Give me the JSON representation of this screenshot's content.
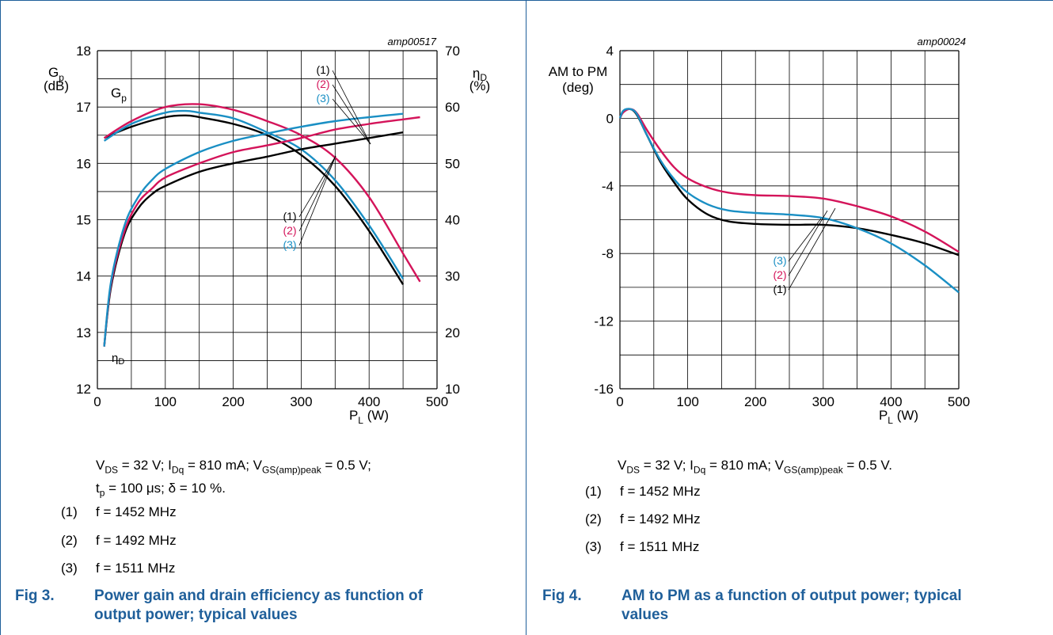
{
  "fig3": {
    "id_label": "amp00517",
    "y_left_label_main": "G",
    "y_left_label_sub": "p",
    "y_left_unit": "(dB)",
    "y_right_label_main": "η",
    "y_right_label_sub": "D",
    "y_right_unit": "(%)",
    "x_label_main": "P",
    "x_label_sub": "L",
    "x_label_unit": " (W)",
    "gp_tag_main": "G",
    "gp_tag_sub": "p",
    "eta_tag_main": "η",
    "eta_tag_sub": "D",
    "conditions_line1": "V_DS = 32 V; I_Dq = 810 mA; V_GS(amp)peak = 0.5 V;",
    "conditions_line2": "t_p = 100 μs; δ = 10 %.",
    "legend": [
      {
        "num": "(1)",
        "text": "f = 1452 MHz"
      },
      {
        "num": "(2)",
        "text": "f = 1492 MHz"
      },
      {
        "num": "(3)",
        "text": "f = 1511 MHz"
      }
    ],
    "caption_num": "Fig 3.",
    "caption_text": "Power gain and drain efficiency as function of output power; typical values"
  },
  "fig4": {
    "id_label": "amp00024",
    "y_label_line1": "AM to PM",
    "y_label_line2": "(deg)",
    "x_label_main": "P",
    "x_label_sub": "L",
    "x_label_unit": " (W)",
    "conditions_line1": "V_DS = 32 V; I_Dq = 810 mA; V_GS(amp)peak = 0.5 V.",
    "legend": [
      {
        "num": "(1)",
        "text": "f = 1452 MHz"
      },
      {
        "num": "(2)",
        "text": "f = 1492 MHz"
      },
      {
        "num": "(3)",
        "text": "f = 1511 MHz"
      }
    ],
    "caption_num": "Fig 4.",
    "caption_text": "AM to PM as a function of output power; typical values"
  },
  "chart_data": [
    {
      "type": "line",
      "xlabel": "PL (W)",
      "ylabel": "Gp (dB)",
      "y2label": "ηD (%)",
      "xlim": [
        0,
        500
      ],
      "ylim": [
        12,
        18
      ],
      "y2lim": [
        10,
        70
      ],
      "x_ticks": [
        "0",
        "100",
        "200",
        "300",
        "400",
        "500"
      ],
      "y_ticks": [
        "12",
        "13",
        "14",
        "15",
        "16",
        "17",
        "18"
      ],
      "y2_ticks": [
        "10",
        "20",
        "30",
        "40",
        "50",
        "60",
        "70"
      ],
      "grid": true,
      "colors": {
        "1": "#000000",
        "2": "#d4145a",
        "3": "#1a8fc4"
      },
      "series": [
        {
          "name": "(1)",
          "axis": "left",
          "x": [
            10,
            50,
            100,
            130,
            150,
            200,
            250,
            300,
            350,
            400,
            450
          ],
          "y": [
            16.45,
            16.65,
            16.82,
            16.85,
            16.82,
            16.7,
            16.5,
            16.15,
            15.6,
            14.8,
            13.85
          ]
        },
        {
          "name": "(2)",
          "axis": "left",
          "x": [
            10,
            50,
            100,
            150,
            200,
            250,
            300,
            350,
            400,
            450,
            475
          ],
          "y": [
            16.45,
            16.75,
            17.0,
            17.05,
            16.95,
            16.75,
            16.5,
            16.1,
            15.4,
            14.4,
            13.9
          ]
        },
        {
          "name": "(3)",
          "axis": "left",
          "x": [
            10,
            50,
            100,
            130,
            150,
            200,
            250,
            300,
            350,
            400,
            450
          ],
          "y": [
            16.4,
            16.7,
            16.9,
            16.93,
            16.9,
            16.8,
            16.55,
            16.25,
            15.7,
            14.9,
            13.95
          ]
        },
        {
          "name": "(1)",
          "axis": "right",
          "x": [
            10,
            20,
            40,
            60,
            80,
            100,
            150,
            200,
            250,
            300,
            350,
            400,
            450
          ],
          "y": [
            17.5,
            28,
            37.5,
            42,
            44.5,
            46,
            48.5,
            50,
            51.2,
            52.5,
            53.5,
            54.5,
            55.5
          ]
        },
        {
          "name": "(2)",
          "axis": "right",
          "x": [
            10,
            20,
            40,
            60,
            80,
            100,
            150,
            200,
            250,
            300,
            350,
            400,
            450,
            475
          ],
          "y": [
            17.5,
            28.5,
            38,
            43,
            45.5,
            47.5,
            50,
            52,
            53.2,
            54.5,
            56,
            57,
            57.8,
            58.2
          ]
        },
        {
          "name": "(3)",
          "axis": "right",
          "x": [
            10,
            20,
            40,
            60,
            80,
            100,
            150,
            200,
            250,
            300,
            350,
            400,
            450
          ],
          "y": [
            17.5,
            29,
            39,
            44,
            47,
            49,
            52,
            54,
            55.3,
            56.5,
            57.5,
            58.2,
            58.8
          ]
        }
      ]
    },
    {
      "type": "line",
      "xlabel": "PL (W)",
      "ylabel": "AM to PM (deg)",
      "xlim": [
        0,
        500
      ],
      "ylim": [
        -16,
        4
      ],
      "x_ticks": [
        "0",
        "100",
        "200",
        "300",
        "400",
        "500"
      ],
      "y_ticks": [
        "-16",
        "-12",
        "-8",
        "-4",
        "0",
        "4"
      ],
      "grid": true,
      "colors": {
        "1": "#000000",
        "2": "#d4145a",
        "3": "#1a8fc4"
      },
      "series": [
        {
          "name": "(1)",
          "x": [
            0,
            5,
            15,
            25,
            40,
            60,
            80,
            100,
            130,
            160,
            200,
            250,
            300,
            350,
            400,
            450,
            500
          ],
          "y": [
            0.0,
            0.4,
            0.55,
            0.2,
            -1.0,
            -2.6,
            -3.8,
            -4.8,
            -5.7,
            -6.1,
            -6.25,
            -6.3,
            -6.3,
            -6.5,
            -6.9,
            -7.4,
            -8.1
          ]
        },
        {
          "name": "(2)",
          "x": [
            0,
            5,
            15,
            25,
            40,
            60,
            80,
            100,
            130,
            160,
            200,
            250,
            300,
            350,
            400,
            450,
            500
          ],
          "y": [
            0.0,
            0.35,
            0.55,
            0.3,
            -0.7,
            -1.9,
            -2.9,
            -3.55,
            -4.1,
            -4.4,
            -4.55,
            -4.6,
            -4.75,
            -5.2,
            -5.8,
            -6.7,
            -7.9
          ]
        },
        {
          "name": "(3)",
          "x": [
            0,
            5,
            15,
            25,
            40,
            60,
            80,
            100,
            130,
            160,
            200,
            250,
            300,
            350,
            400,
            450,
            500
          ],
          "y": [
            0.0,
            0.45,
            0.55,
            0.25,
            -1.0,
            -2.5,
            -3.6,
            -4.4,
            -5.1,
            -5.45,
            -5.6,
            -5.7,
            -5.9,
            -6.5,
            -7.4,
            -8.7,
            -10.3
          ]
        }
      ]
    }
  ]
}
